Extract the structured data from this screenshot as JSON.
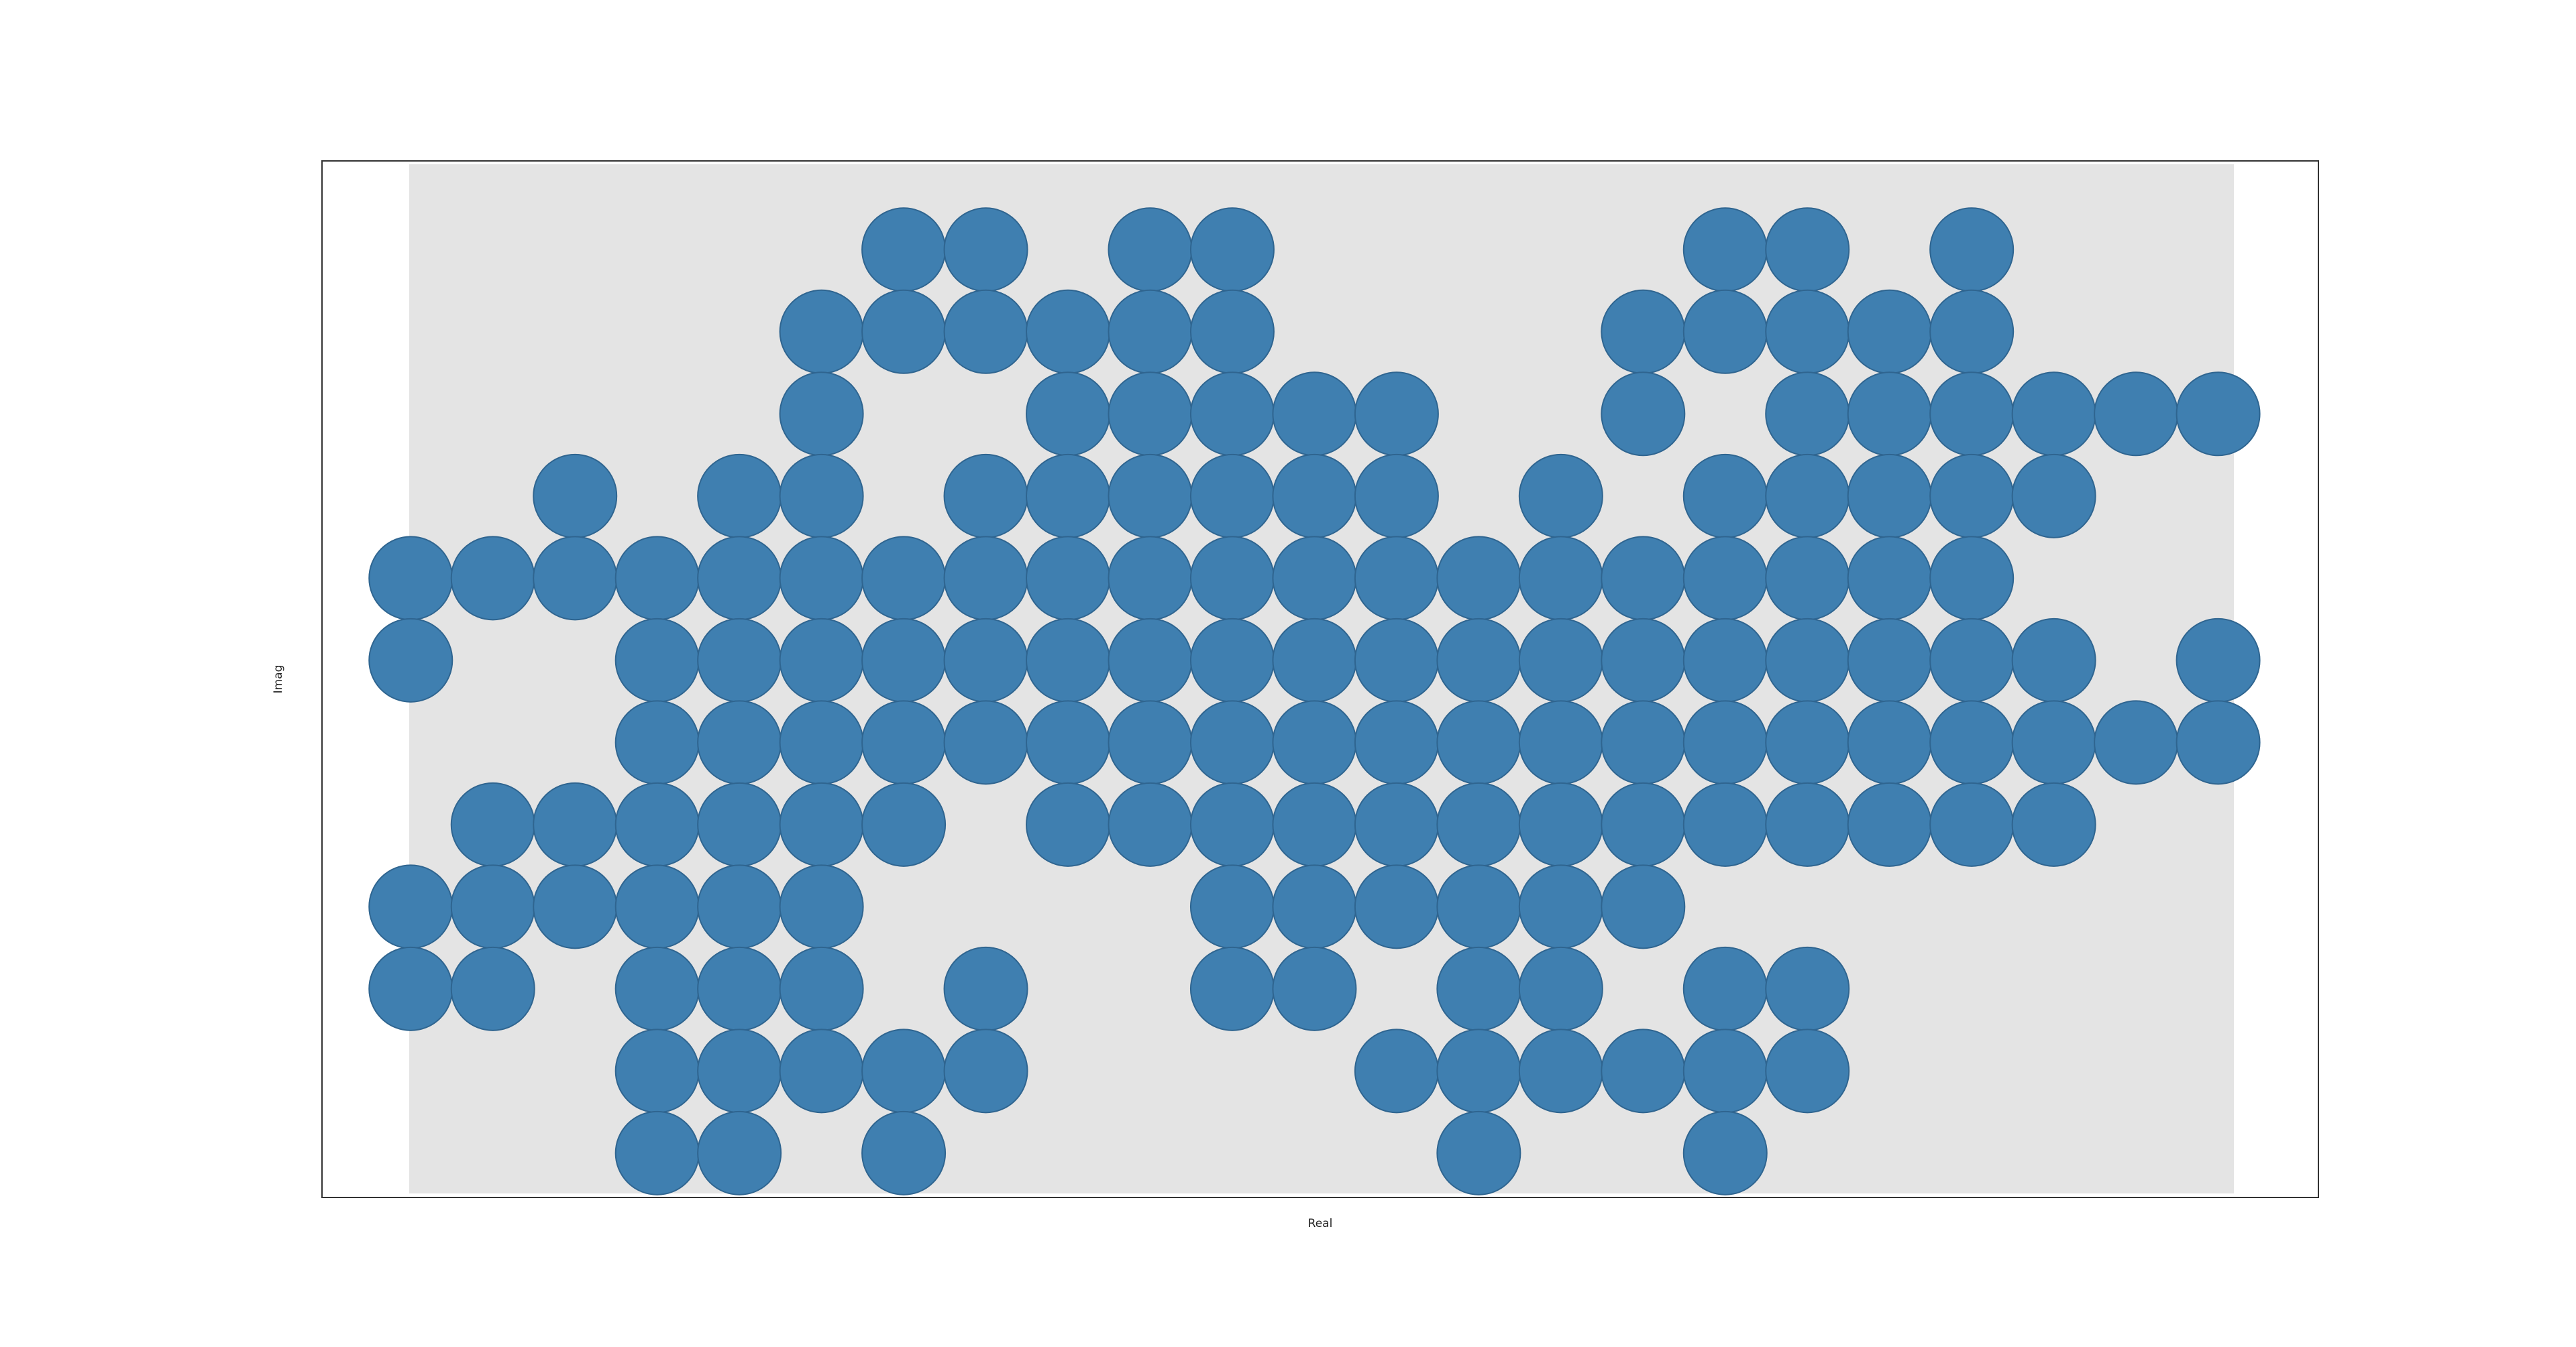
{
  "chart_data": {
    "type": "scatter",
    "xlabel": "Real",
    "ylabel": "Imag",
    "color": "#3f7fb0",
    "xlim": [
      -5.4,
      116.1
    ],
    "ylim": [
      -2.7,
      60.4
    ],
    "x": [
      30,
      35,
      45,
      50,
      80,
      85,
      95,
      25,
      30,
      35,
      40,
      45,
      50,
      75,
      80,
      85,
      90,
      95,
      25,
      40,
      45,
      50,
      55,
      60,
      75,
      85,
      90,
      95,
      100,
      105,
      110,
      10,
      20,
      25,
      35,
      40,
      45,
      50,
      55,
      60,
      70,
      80,
      85,
      90,
      95,
      100,
      0,
      5,
      10,
      15,
      20,
      25,
      30,
      35,
      40,
      45,
      50,
      55,
      60,
      65,
      70,
      75,
      80,
      85,
      90,
      95,
      0,
      15,
      20,
      25,
      30,
      35,
      40,
      45,
      50,
      55,
      60,
      65,
      70,
      75,
      80,
      85,
      90,
      95,
      100,
      110,
      15,
      20,
      25,
      30,
      35,
      40,
      45,
      50,
      55,
      60,
      65,
      70,
      75,
      80,
      85,
      90,
      95,
      100,
      105,
      110,
      5,
      10,
      15,
      20,
      25,
      30,
      40,
      45,
      50,
      55,
      60,
      65,
      70,
      75,
      80,
      85,
      90,
      95,
      100,
      0,
      5,
      10,
      15,
      20,
      25,
      50,
      55,
      60,
      65,
      70,
      75,
      0,
      5,
      15,
      20,
      25,
      35,
      50,
      55,
      65,
      70,
      80,
      85,
      15,
      20,
      25,
      30,
      35,
      60,
      65,
      70,
      75,
      80,
      85,
      15,
      20,
      30,
      65,
      80
    ],
    "values": [
      55,
      55,
      55,
      55,
      55,
      55,
      55,
      50,
      50,
      50,
      50,
      50,
      50,
      50,
      50,
      50,
      50,
      50,
      45,
      45,
      45,
      45,
      45,
      45,
      45,
      45,
      45,
      45,
      45,
      45,
      45,
      40,
      40,
      40,
      40,
      40,
      40,
      40,
      40,
      40,
      40,
      40,
      40,
      40,
      40,
      40,
      35,
      35,
      35,
      35,
      35,
      35,
      35,
      35,
      35,
      35,
      35,
      35,
      35,
      35,
      35,
      35,
      35,
      35,
      35,
      35,
      30,
      30,
      30,
      30,
      30,
      30,
      30,
      30,
      30,
      30,
      30,
      30,
      30,
      30,
      30,
      30,
      30,
      30,
      30,
      30,
      25,
      25,
      25,
      25,
      25,
      25,
      25,
      25,
      25,
      25,
      25,
      25,
      25,
      25,
      25,
      25,
      25,
      25,
      25,
      25,
      20,
      20,
      20,
      20,
      20,
      20,
      20,
      20,
      20,
      20,
      20,
      20,
      20,
      20,
      20,
      20,
      20,
      20,
      20,
      15,
      15,
      15,
      15,
      15,
      15,
      15,
      15,
      15,
      15,
      15,
      15,
      10,
      10,
      10,
      10,
      10,
      10,
      10,
      10,
      10,
      10,
      10,
      10,
      5,
      5,
      5,
      5,
      5,
      5,
      5,
      5,
      5,
      5,
      5,
      0,
      0,
      0,
      0,
      0
    ]
  }
}
